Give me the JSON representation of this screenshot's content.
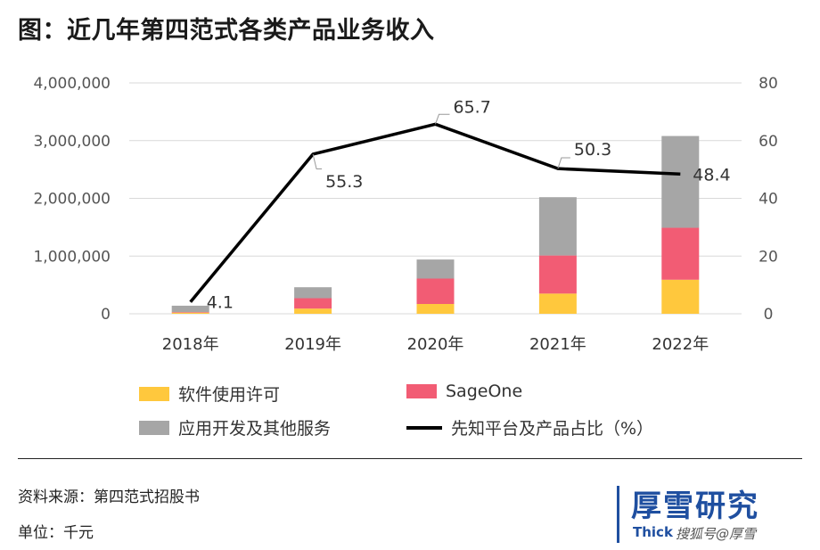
{
  "title": "图：近几年第四范式各类产品业务收入",
  "chart_data": {
    "type": "bar",
    "categories": [
      "2018年",
      "2019年",
      "2020年",
      "2021年",
      "2022年"
    ],
    "series": [
      {
        "name": "软件使用许可",
        "values": [
          20000,
          90000,
          170000,
          350000,
          590000
        ],
        "color": "#ffc83d"
      },
      {
        "name": "SageOne",
        "values": [
          10000,
          180000,
          440000,
          660000,
          900000
        ],
        "color": "#f25c74"
      },
      {
        "name": "应用开发及其他服务",
        "values": [
          110000,
          190000,
          330000,
          1010000,
          1590000
        ],
        "color": "#a6a6a6"
      }
    ],
    "line_series": {
      "name": "先知平台及产品占比（%）",
      "values": [
        4.1,
        55.3,
        65.7,
        50.3,
        48.4
      ],
      "labels": [
        "4.1",
        "55.3",
        "65.7",
        "50.3",
        "48.4"
      ],
      "color": "#000000"
    },
    "ylim": [
      0,
      4000000
    ],
    "y_ticks": [
      "0",
      "1,000,000",
      "2,000,000",
      "3,000,000",
      "4,000,000"
    ],
    "y2lim": [
      0,
      80
    ],
    "y2_ticks": [
      "0",
      "20",
      "40",
      "60",
      "80"
    ],
    "grid": true,
    "legend_position": "bottom"
  },
  "footer": {
    "source": "资料来源：第四范式招股书",
    "unit": "单位：千元"
  },
  "brand": {
    "name_cn": "厚雪研究",
    "name_en": "Thick",
    "watermark": "搜狐号@厚雪"
  }
}
